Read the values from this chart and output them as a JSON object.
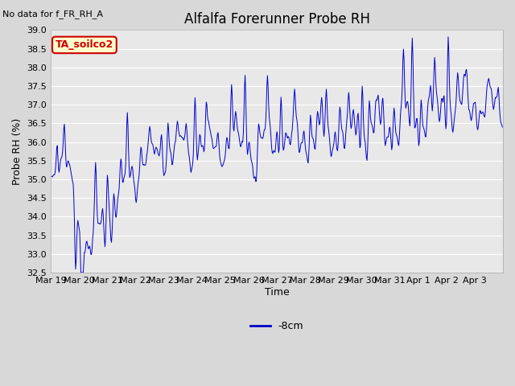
{
  "title": "Alfalfa Forerunner Probe RH",
  "no_data_label": "No data for f_FR_RH_A",
  "ylabel": "Probe RH (%)",
  "xlabel": "Time",
  "legend_label": "-8cm",
  "legend_box_label": "TA_soilco2",
  "line_color": "#0000cc",
  "ylim": [
    32.5,
    39.0
  ],
  "yticks": [
    32.5,
    33.0,
    33.5,
    34.0,
    34.5,
    35.0,
    35.5,
    36.0,
    36.5,
    37.0,
    37.5,
    38.0,
    38.5,
    39.0
  ],
  "fig_bg_color": "#d8d8d8",
  "plot_bg_color": "#e8e8e8",
  "grid_color": "#ffffff",
  "title_fontsize": 12,
  "label_fontsize": 9,
  "tick_fontsize": 8,
  "legend_box_facecolor": "#ffffcc",
  "legend_box_edgecolor": "#cc0000",
  "legend_box_textcolor": "#cc0000",
  "legend_fontsize": 9
}
